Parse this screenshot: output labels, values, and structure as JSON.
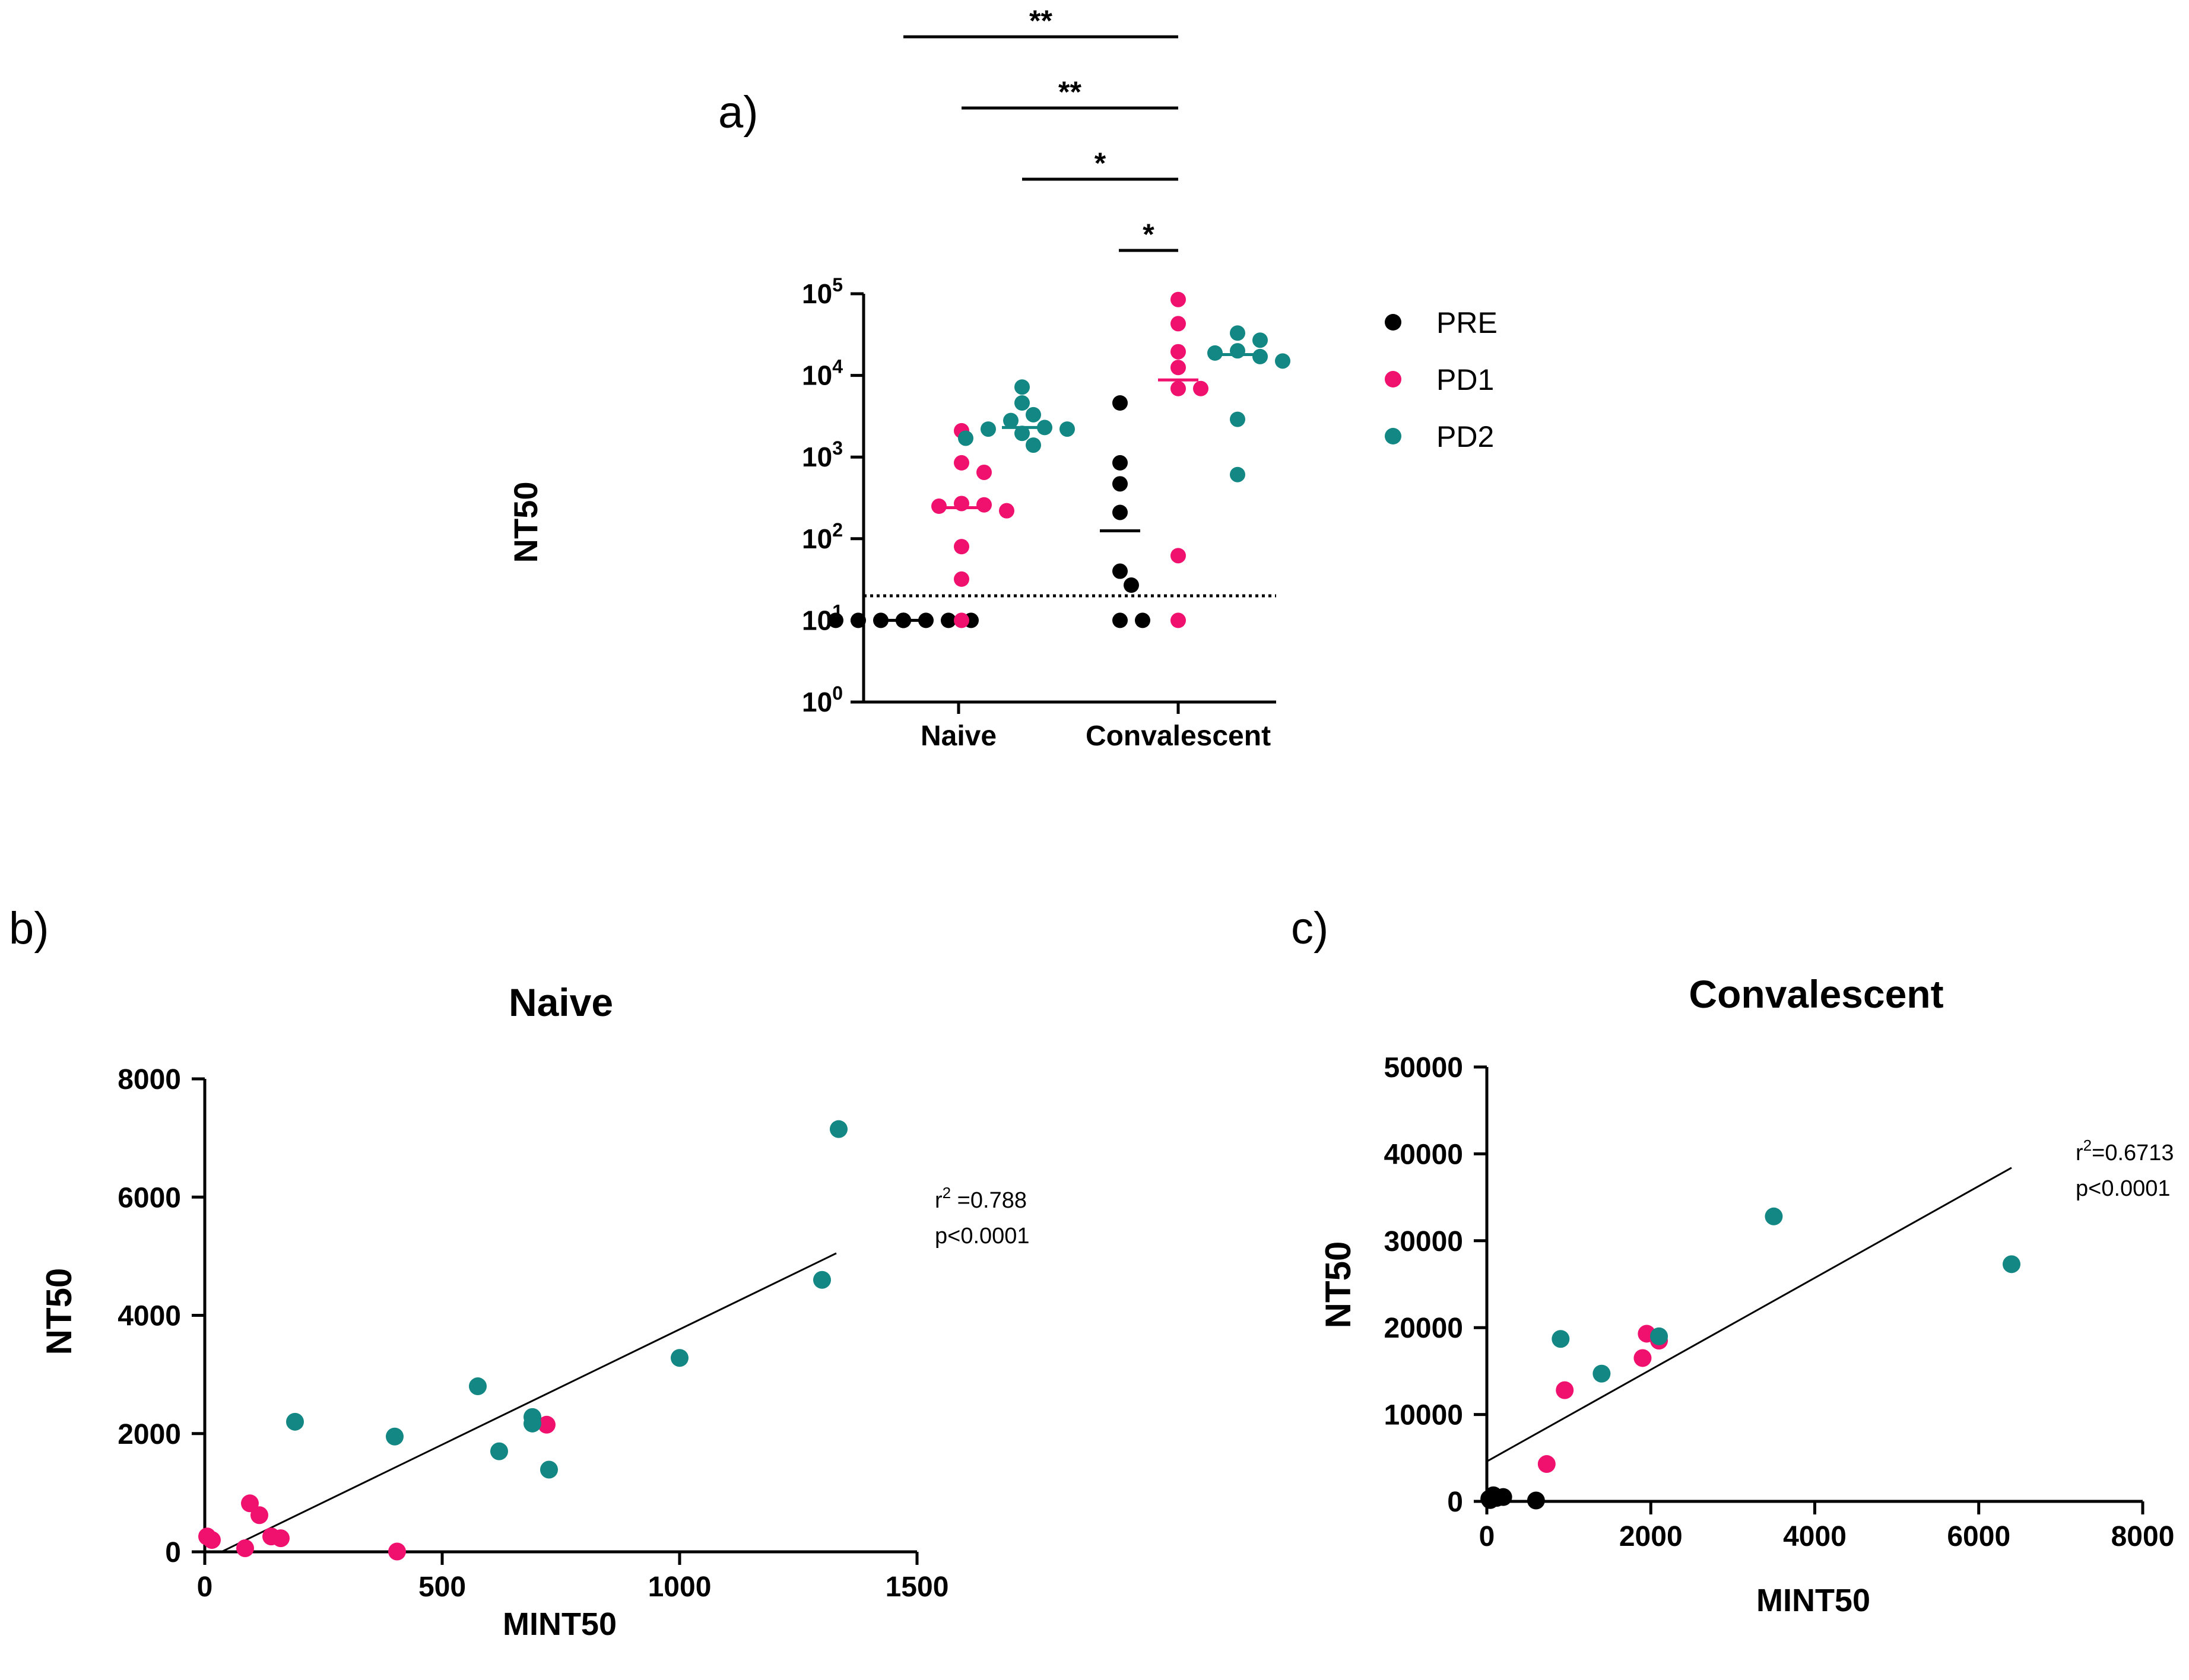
{
  "colors": {
    "PRE": "#000000",
    "PD1": "#f0116e",
    "PD2": "#138783"
  },
  "panels": {
    "a": {
      "label": "a)"
    },
    "b": {
      "label": "b)"
    },
    "c": {
      "label": "c)"
    }
  },
  "chart_data": [
    {
      "id": "a",
      "type": "scatter",
      "ylabel": "NT50",
      "yscale": "log",
      "ylim": [
        1,
        100000
      ],
      "yticks": [
        {
          "base": "10",
          "exp": "0"
        },
        {
          "base": "10",
          "exp": "1"
        },
        {
          "base": "10",
          "exp": "2"
        },
        {
          "base": "10",
          "exp": "3"
        },
        {
          "base": "10",
          "exp": "4"
        },
        {
          "base": "10",
          "exp": "5"
        }
      ],
      "categories": [
        "Naive",
        "Convalescent"
      ],
      "detection_limit": 20,
      "legend_position": "right",
      "legend": [
        "PRE",
        "PD1",
        "PD2"
      ],
      "significance": [
        {
          "label": "**",
          "from": "Naive PD1",
          "to": "Convalescent PD1"
        },
        {
          "label": "**",
          "from": "Naive PD2",
          "to": "Convalescent PD1"
        },
        {
          "label": "*",
          "from": "Naive PD2 (right)",
          "to": "Convalescent PD1"
        },
        {
          "label": "*",
          "from": "Convalescent PRE",
          "to": "Convalescent PD1"
        }
      ],
      "groups": [
        {
          "category": "Naive",
          "series": "PRE",
          "median": 10,
          "values": [
            10,
            10,
            10,
            10,
            10,
            10,
            10,
            10,
            10,
            10
          ]
        },
        {
          "category": "Naive",
          "series": "PD1",
          "median": 240,
          "values": [
            2100,
            850,
            650,
            270,
            260,
            250,
            220,
            80,
            32,
            10
          ]
        },
        {
          "category": "Naive",
          "series": "PD2",
          "median": 2300,
          "values": [
            7200,
            4600,
            3300,
            2800,
            2300,
            2200,
            2200,
            1950,
            1700,
            1400
          ]
        },
        {
          "category": "Convalescent",
          "series": "PRE",
          "median": 125,
          "values": [
            4600,
            850,
            470,
            210,
            40,
            27,
            10,
            10
          ]
        },
        {
          "category": "Convalescent",
          "series": "PD1",
          "median": 8800,
          "values": [
            85000,
            43000,
            19500,
            12500,
            6900,
            6900,
            62,
            10
          ]
        },
        {
          "category": "Convalescent",
          "series": "PD2",
          "median": 18000,
          "values": [
            33000,
            27000,
            20000,
            18800,
            17000,
            15000,
            2900,
            610
          ]
        }
      ]
    },
    {
      "id": "b",
      "type": "scatter",
      "title": "Naive",
      "xlabel": "MINT50",
      "ylabel": "NT50",
      "xlim": [
        0,
        1500
      ],
      "ylim": [
        0,
        8000
      ],
      "xticks": [
        0,
        500,
        1000,
        1500
      ],
      "yticks": [
        0,
        2000,
        4000,
        6000,
        8000
      ],
      "annotation": {
        "r_prefix": "r",
        "r_sup": "2",
        "r_value": " =0.788",
        "p": "p<0.0001"
      },
      "regression": {
        "x": [
          35,
          1330
        ],
        "y": [
          0,
          5050
        ]
      },
      "series": [
        {
          "name": "PD1",
          "points": [
            [
              5,
              260
            ],
            [
              15,
              200
            ],
            [
              95,
              820
            ],
            [
              115,
              620
            ],
            [
              140,
              260
            ],
            [
              160,
              230
            ],
            [
              85,
              60
            ],
            [
              720,
              2150
            ],
            [
              405,
              5
            ]
          ]
        },
        {
          "name": "PD2",
          "points": [
            [
              1335,
              7150
            ],
            [
              1300,
              4600
            ],
            [
              1000,
              3280
            ],
            [
              575,
              2800
            ],
            [
              690,
              2280
            ],
            [
              690,
              2170
            ],
            [
              190,
              2200
            ],
            [
              400,
              1950
            ],
            [
              620,
              1700
            ],
            [
              725,
              1390
            ]
          ]
        }
      ]
    },
    {
      "id": "c",
      "type": "scatter",
      "title": "Convalescent",
      "xlabel": "MINT50",
      "ylabel": "NT50",
      "xlim": [
        0,
        8000
      ],
      "ylim": [
        0,
        50000
      ],
      "xticks": [
        0,
        2000,
        4000,
        6000,
        8000
      ],
      "yticks": [
        0,
        10000,
        20000,
        30000,
        40000,
        50000
      ],
      "annotation": {
        "r_prefix": "r",
        "r_sup": "2",
        "r_value": "=0.6713",
        "p": "p<0.0001"
      },
      "regression": {
        "x": [
          0,
          6400
        ],
        "y": [
          4600,
          38400
        ]
      },
      "series": [
        {
          "name": "PRE",
          "points": [
            [
              30,
              300
            ],
            [
              80,
              700
            ],
            [
              120,
              400
            ],
            [
              200,
              500
            ],
            [
              600,
              100
            ],
            [
              40,
              150
            ]
          ]
        },
        {
          "name": "PD1",
          "points": [
            [
              730,
              4300
            ],
            [
              950,
              12800
            ],
            [
              1900,
              16500
            ],
            [
              1950,
              19300
            ],
            [
              2100,
              18500
            ]
          ]
        },
        {
          "name": "PD2",
          "points": [
            [
              900,
              18700
            ],
            [
              1400,
              14700
            ],
            [
              2100,
              19000
            ],
            [
              3500,
              32800
            ],
            [
              6400,
              27300
            ]
          ]
        }
      ]
    }
  ]
}
